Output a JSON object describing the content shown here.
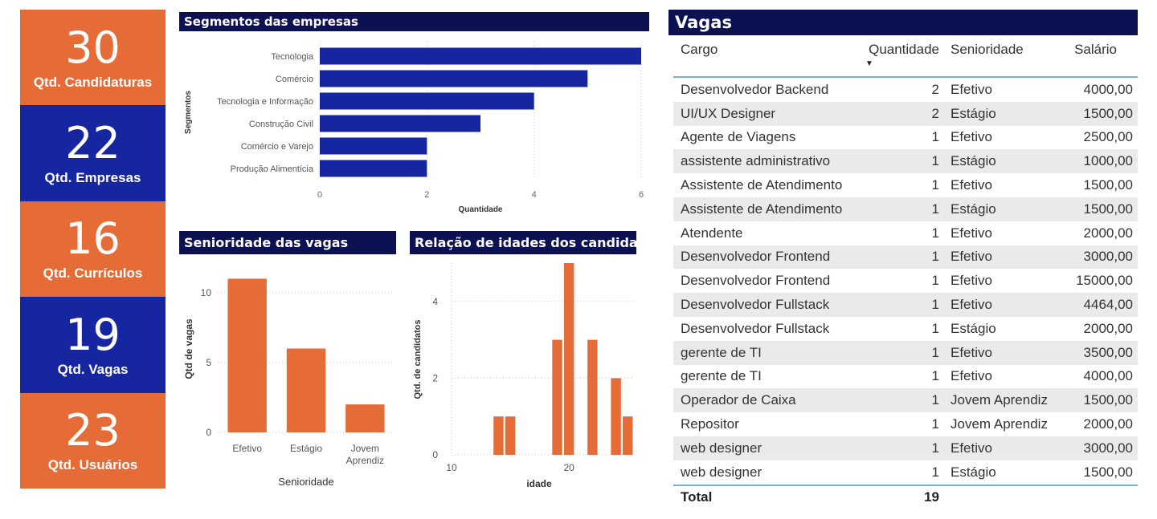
{
  "kpis": [
    {
      "value": "30",
      "label": "Qtd. Candidaturas",
      "color": "#e66c37"
    },
    {
      "value": "22",
      "label": "Qtd. Empresas",
      "color": "#1626a0"
    },
    {
      "value": "16",
      "label": "Qtd. Currículos",
      "color": "#e66c37"
    },
    {
      "value": "19",
      "label": "Qtd. Vagas",
      "color": "#1626a0"
    },
    {
      "value": "23",
      "label": "Qtd. Usuários",
      "color": "#e66c37"
    }
  ],
  "chart_data": [
    {
      "type": "bar",
      "orientation": "horizontal",
      "title": "Segmentos das empresas",
      "categories": [
        "Tecnologia",
        "Comércio",
        "Tecnologia e Informação",
        "Construção Civil",
        "Comércio e Varejo",
        "Produção Alimentícia"
      ],
      "values": [
        6,
        5,
        4,
        3,
        2,
        2
      ],
      "xlabel": "Quantidade",
      "ylabel": "Segmentos",
      "xlim": [
        0,
        6
      ],
      "xticks": [
        "0",
        "2",
        "4",
        "6"
      ],
      "color": "#1626a0",
      "grid": true
    },
    {
      "type": "bar",
      "title": "Senioridade das vagas",
      "categories": [
        "Efetivo",
        "Estágio",
        "Jovem Aprendiz"
      ],
      "values": [
        11,
        6,
        2
      ],
      "xlabel": "Senioridade",
      "ylabel": "Qtd de vagas",
      "ylim": [
        0,
        12
      ],
      "yticks": [
        "0",
        "5",
        "10"
      ],
      "color": "#e66c37",
      "grid": true
    },
    {
      "type": "bar",
      "title": "Relação de idades dos candidatos",
      "x": [
        14,
        15,
        19,
        20,
        22,
        24,
        25
      ],
      "values": [
        1,
        1,
        3,
        5,
        3,
        2,
        1
      ],
      "xlabel": "idade",
      "ylabel": "Qtd. de candidatos",
      "xlim": [
        10,
        25.6
      ],
      "ylim": [
        0,
        5
      ],
      "xticks": [
        "10",
        "20"
      ],
      "yticks": [
        "0",
        "2",
        "4"
      ],
      "color": "#e66c37",
      "grid": true
    }
  ],
  "table": {
    "title": "Vagas",
    "columns": [
      "Cargo",
      "Quantidade",
      "Senioridade",
      "Salário"
    ],
    "rows": [
      [
        "Desenvolvedor Backend",
        "2",
        "Efetivo",
        "4000,00"
      ],
      [
        "UI/UX Designer",
        "2",
        "Estágio",
        "1500,00"
      ],
      [
        "Agente de Viagens",
        "1",
        "Efetivo",
        "2500,00"
      ],
      [
        "assistente administrativo",
        "1",
        "Estágio",
        "1000,00"
      ],
      [
        "Assistente de Atendimento",
        "1",
        "Efetivo",
        "1500,00"
      ],
      [
        "Assistente de Atendimento",
        "1",
        "Estágio",
        "1500,00"
      ],
      [
        "Atendente",
        "1",
        "Efetivo",
        "2000,00"
      ],
      [
        "Desenvolvedor Frontend",
        "1",
        "Efetivo",
        "3000,00"
      ],
      [
        "Desenvolvedor Frontend",
        "1",
        "Efetivo",
        "15000,00"
      ],
      [
        "Desenvolvedor Fullstack",
        "1",
        "Efetivo",
        "4464,00"
      ],
      [
        "Desenvolvedor Fullstack",
        "1",
        "Estágio",
        "2000,00"
      ],
      [
        "gerente de TI",
        "1",
        "Efetivo",
        "3500,00"
      ],
      [
        "gerente de TI",
        "1",
        "Efetivo",
        "4000,00"
      ],
      [
        "Operador de Caixa",
        "1",
        "Jovem Aprendiz",
        "1500,00"
      ],
      [
        "Repositor",
        "1",
        "Jovem Aprendiz",
        "2000,00"
      ],
      [
        "web designer",
        "1",
        "Efetivo",
        "3000,00"
      ],
      [
        "web designer",
        "1",
        "Estágio",
        "1500,00"
      ]
    ],
    "total_label": "Total",
    "total_value": "19"
  }
}
